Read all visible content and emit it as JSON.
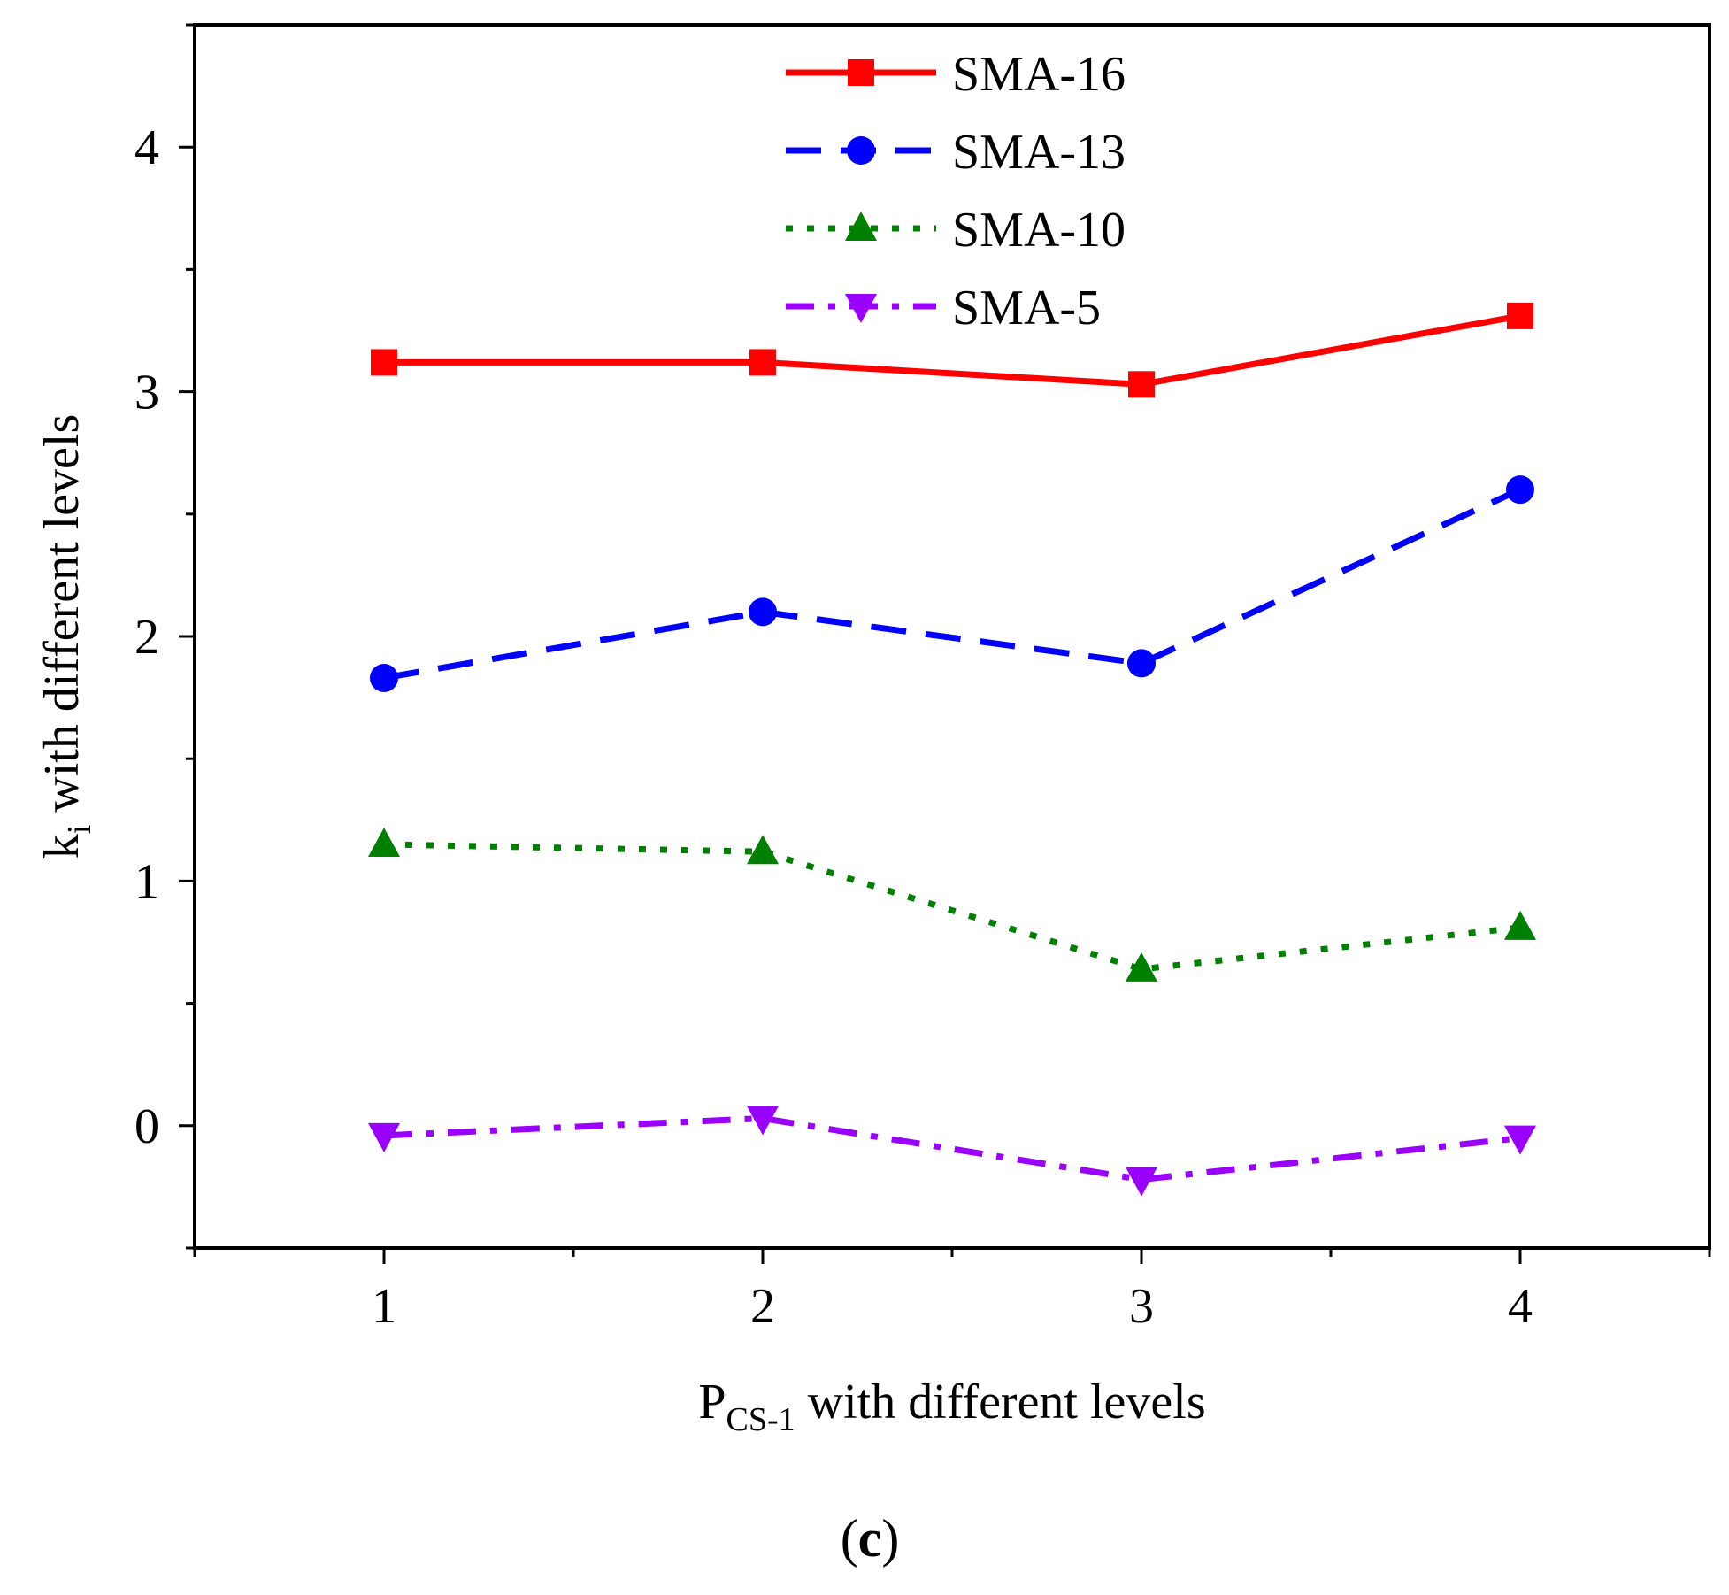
{
  "chart_data": {
    "type": "line",
    "x": [
      1,
      2,
      3,
      4
    ],
    "series": [
      {
        "name": "SMA-16",
        "values": [
          3.12,
          3.12,
          3.03,
          3.31
        ],
        "color": "#ff0000",
        "marker": "square",
        "line_style": "solid"
      },
      {
        "name": "SMA-13",
        "values": [
          1.83,
          2.1,
          1.89,
          2.6
        ],
        "color": "#0000ff",
        "marker": "circle",
        "line_style": "dash"
      },
      {
        "name": "SMA-10",
        "values": [
          1.15,
          1.12,
          0.64,
          0.81
        ],
        "color": "#008000",
        "marker": "triangle-up",
        "line_style": "dot"
      },
      {
        "name": "SMA-5",
        "values": [
          -0.04,
          0.03,
          -0.22,
          -0.05
        ],
        "color": "#9900ff",
        "marker": "triangle-down",
        "line_style": "dash-dot"
      }
    ],
    "xlabel": {
      "main": "P",
      "sub": "CS-1",
      "rest": " with different levels"
    },
    "ylabel": {
      "main": "k",
      "sub": "i",
      "rest": " with different levels"
    },
    "xlim": [
      0.5,
      4.5
    ],
    "ylim": [
      -0.5,
      4.5
    ],
    "xticks": [
      1,
      2,
      3,
      4
    ],
    "yticks": [
      0,
      1,
      2,
      3,
      4
    ],
    "legend_position": "top-center",
    "grid": false
  },
  "panel_label": {
    "open": "(",
    "letter": "c",
    "close": ")"
  }
}
